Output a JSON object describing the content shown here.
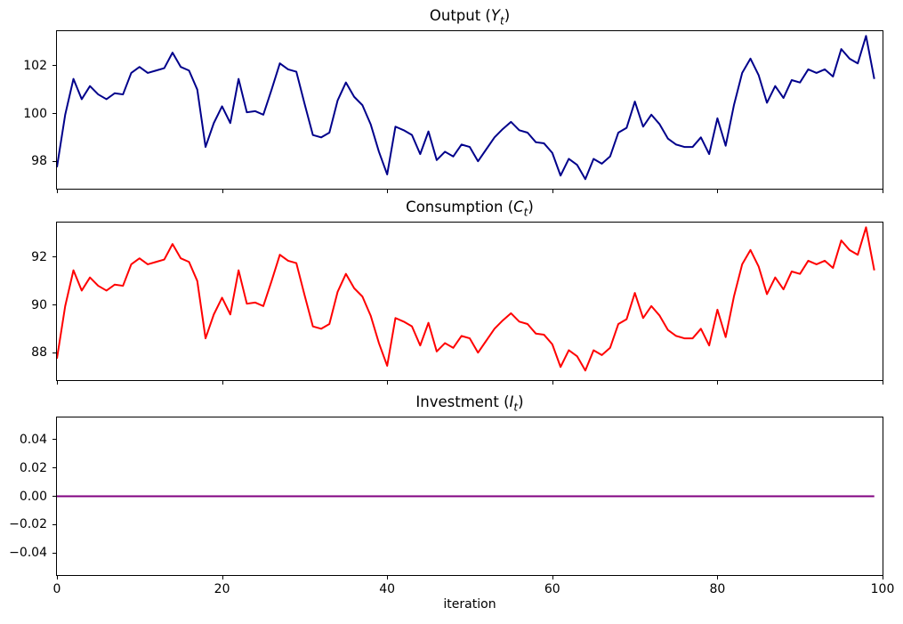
{
  "figure": {
    "background": "#ffffff",
    "x_axis": {
      "label": "iteration",
      "tick_values": [
        0,
        20,
        40,
        60,
        80,
        100
      ],
      "tick_labels": [
        "0",
        "20",
        "40",
        "60",
        "80",
        "100"
      ],
      "xlim": [
        0,
        100
      ]
    }
  },
  "chart_data": [
    {
      "type": "line",
      "title": {
        "pre": "Output (",
        "var": "Y",
        "sub": "t",
        "post": ")"
      },
      "color": "#00008B",
      "line_width": 2,
      "x_start": 0,
      "x_step": 1,
      "xlim": [
        0,
        100
      ],
      "ylim": [
        96.85,
        103.45
      ],
      "y_tick_values": [
        98,
        100,
        102
      ],
      "y_tick_labels": [
        "98",
        "100",
        "102"
      ],
      "grid": false,
      "values": [
        97.75,
        99.95,
        101.45,
        100.6,
        101.15,
        100.8,
        100.6,
        100.85,
        100.8,
        101.7,
        101.95,
        101.7,
        101.8,
        101.9,
        102.55,
        101.95,
        101.8,
        101.0,
        98.6,
        99.6,
        100.3,
        99.6,
        101.45,
        100.05,
        100.1,
        99.95,
        101.0,
        102.1,
        101.85,
        101.75,
        100.4,
        99.1,
        99.0,
        99.2,
        100.55,
        101.3,
        100.7,
        100.35,
        99.55,
        98.4,
        97.45,
        99.45,
        99.3,
        99.1,
        98.3,
        99.25,
        98.05,
        98.4,
        98.2,
        98.7,
        98.6,
        98.0,
        98.5,
        99.0,
        99.35,
        99.65,
        99.3,
        99.2,
        98.8,
        98.75,
        98.35,
        97.4,
        98.1,
        97.85,
        97.25,
        98.1,
        97.9,
        98.2,
        99.2,
        99.4,
        100.5,
        99.45,
        99.95,
        99.55,
        98.95,
        98.7,
        98.6,
        98.6,
        99.0,
        98.3,
        99.8,
        98.65,
        100.35,
        101.7,
        102.3,
        101.6,
        100.45,
        101.15,
        100.65,
        101.4,
        101.3,
        101.85,
        101.7,
        101.85,
        101.55,
        102.7,
        102.3,
        102.1,
        103.25,
        101.45
      ]
    },
    {
      "type": "line",
      "title": {
        "pre": "Consumption (",
        "var": "C",
        "sub": "t",
        "post": ")"
      },
      "color": "#FF0000",
      "line_width": 2,
      "x_start": 0,
      "x_step": 1,
      "xlim": [
        0,
        100
      ],
      "ylim": [
        86.85,
        93.45
      ],
      "y_tick_values": [
        88,
        90,
        92
      ],
      "y_tick_labels": [
        "88",
        "90",
        "92"
      ],
      "grid": false,
      "values": [
        87.75,
        89.95,
        91.45,
        90.6,
        91.15,
        90.8,
        90.6,
        90.85,
        90.8,
        91.7,
        91.95,
        91.7,
        91.8,
        91.9,
        92.55,
        91.95,
        91.8,
        91.0,
        88.6,
        89.6,
        90.3,
        89.6,
        91.45,
        90.05,
        90.1,
        89.95,
        91.0,
        92.1,
        91.85,
        91.75,
        90.4,
        89.1,
        89.0,
        89.2,
        90.55,
        91.3,
        90.7,
        90.35,
        89.55,
        88.4,
        87.45,
        89.45,
        89.3,
        89.1,
        88.3,
        89.25,
        88.05,
        88.4,
        88.2,
        88.7,
        88.6,
        88.0,
        88.5,
        89.0,
        89.35,
        89.65,
        89.3,
        89.2,
        88.8,
        88.75,
        88.35,
        87.4,
        88.1,
        87.85,
        87.25,
        88.1,
        87.9,
        88.2,
        89.2,
        89.4,
        90.5,
        89.45,
        89.95,
        89.55,
        88.95,
        88.7,
        88.6,
        88.6,
        89.0,
        88.3,
        89.8,
        88.65,
        90.35,
        91.7,
        92.3,
        91.6,
        90.45,
        91.15,
        90.65,
        91.4,
        91.3,
        91.85,
        91.7,
        91.85,
        91.55,
        92.7,
        92.3,
        92.1,
        93.25,
        91.45
      ]
    },
    {
      "type": "line",
      "title": {
        "pre": "Investment (",
        "var": "I",
        "sub": "t",
        "post": ")"
      },
      "color": "#800080",
      "line_width": 2,
      "x_start": 0,
      "x_step": 1,
      "xlim": [
        0,
        100
      ],
      "ylim": [
        -0.0555,
        0.0555
      ],
      "y_tick_values": [
        0.04,
        0.02,
        0.0,
        -0.02,
        -0.04
      ],
      "y_tick_labels": [
        "0.04",
        "0.02",
        "0.00",
        "−0.02",
        "−0.04"
      ],
      "grid": false,
      "values": [
        0.0,
        0.0,
        0.0,
        0.0,
        0.0,
        0.0,
        0.0,
        0.0,
        0.0,
        0.0,
        0.0,
        0.0,
        0.0,
        0.0,
        0.0,
        0.0,
        0.0,
        0.0,
        0.0,
        0.0,
        0.0,
        0.0,
        0.0,
        0.0,
        0.0,
        0.0,
        0.0,
        0.0,
        0.0,
        0.0,
        0.0,
        0.0,
        0.0,
        0.0,
        0.0,
        0.0,
        0.0,
        0.0,
        0.0,
        0.0,
        0.0,
        0.0,
        0.0,
        0.0,
        0.0,
        0.0,
        0.0,
        0.0,
        0.0,
        0.0,
        0.0,
        0.0,
        0.0,
        0.0,
        0.0,
        0.0,
        0.0,
        0.0,
        0.0,
        0.0,
        0.0,
        0.0,
        0.0,
        0.0,
        0.0,
        0.0,
        0.0,
        0.0,
        0.0,
        0.0,
        0.0,
        0.0,
        0.0,
        0.0,
        0.0,
        0.0,
        0.0,
        0.0,
        0.0,
        0.0,
        0.0,
        0.0,
        0.0,
        0.0,
        0.0,
        0.0,
        0.0,
        0.0,
        0.0,
        0.0,
        0.0,
        0.0,
        0.0,
        0.0,
        0.0,
        0.0,
        0.0,
        0.0,
        0.0,
        0.0
      ]
    }
  ]
}
